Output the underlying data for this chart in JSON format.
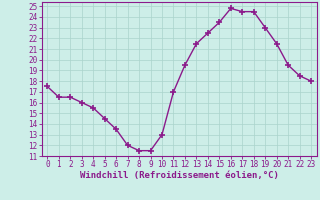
{
  "hours": [
    0,
    1,
    2,
    3,
    4,
    5,
    6,
    7,
    8,
    9,
    10,
    11,
    12,
    13,
    14,
    15,
    16,
    17,
    18,
    19,
    20,
    21,
    22,
    23
  ],
  "temps": [
    17.5,
    16.5,
    16.5,
    16.0,
    15.5,
    14.5,
    13.5,
    12.0,
    11.5,
    11.5,
    13.0,
    17.0,
    19.5,
    21.5,
    22.5,
    23.5,
    24.8,
    24.5,
    24.5,
    23.0,
    21.5,
    19.5,
    18.5,
    18.0
  ],
  "line_color": "#8b1a8b",
  "marker": "+",
  "marker_size": 4,
  "marker_lw": 1.2,
  "background_color": "#cdeee8",
  "grid_color": "#aad4cc",
  "xlabel": "Windchill (Refroidissement éolien,°C)",
  "xlabel_color": "#8b1a8b",
  "ylabel_ticks": [
    11,
    12,
    13,
    14,
    15,
    16,
    17,
    18,
    19,
    20,
    21,
    22,
    23,
    24,
    25
  ],
  "ylim": [
    11,
    25.4
  ],
  "xlim": [
    -0.5,
    23.5
  ],
  "tick_color": "#8b1a8b",
  "tick_fontsize": 5.5,
  "xlabel_fontsize": 6.5,
  "axis_color": "#8b1a8b",
  "linewidth": 1.0
}
